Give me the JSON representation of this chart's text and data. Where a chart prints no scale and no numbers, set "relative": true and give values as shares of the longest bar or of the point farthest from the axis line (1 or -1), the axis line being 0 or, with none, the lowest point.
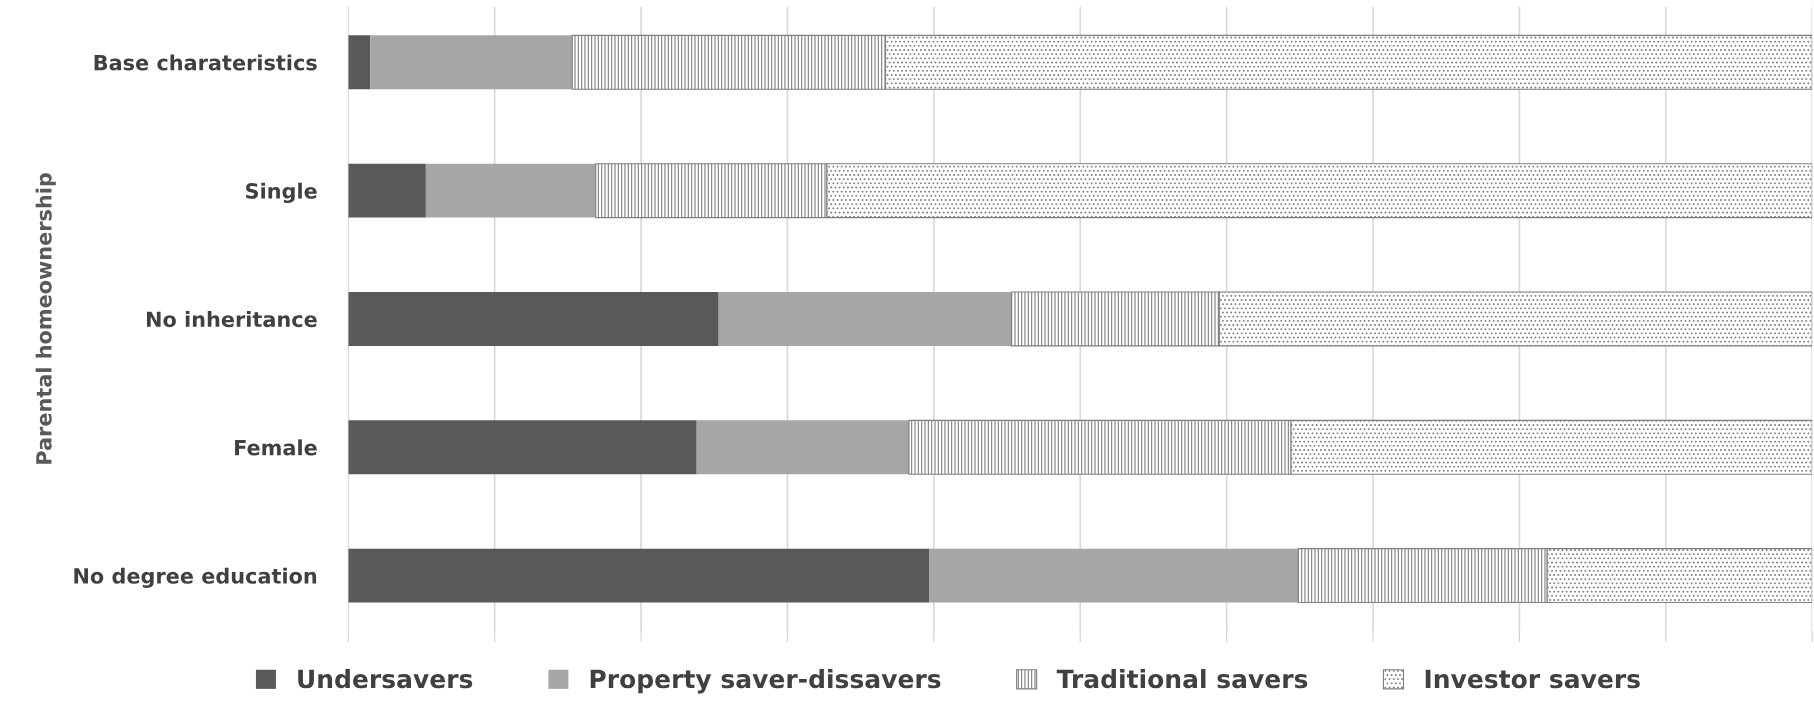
{
  "chart_data": {
    "type": "bar",
    "orientation": "horizontal",
    "stacked": true,
    "relative": true,
    "ylabel": "Parental homeownership",
    "grid": "x",
    "legend": "bottom",
    "categories": [
      "Base charateristics",
      "Single",
      "No inheritance",
      "Female",
      "No degree education"
    ],
    "series": [
      {
        "name": "Undersavers",
        "color": "#595959",
        "values": [
          0.015,
          0.053,
          0.253,
          0.238,
          0.397
        ]
      },
      {
        "name": "Property saver-dissavers",
        "color": "#a6a6a6",
        "values": [
          0.138,
          0.116,
          0.2,
          0.145,
          0.252
        ]
      },
      {
        "name": "Traditional savers",
        "color": "#7f7f7f",
        "values": [
          0.214,
          0.158,
          0.142,
          0.261,
          0.17
        ]
      },
      {
        "name": "Investor savers",
        "color": "#7f7f7f",
        "values": [
          0.633,
          0.673,
          0.405,
          0.356,
          0.181
        ]
      }
    ]
  }
}
